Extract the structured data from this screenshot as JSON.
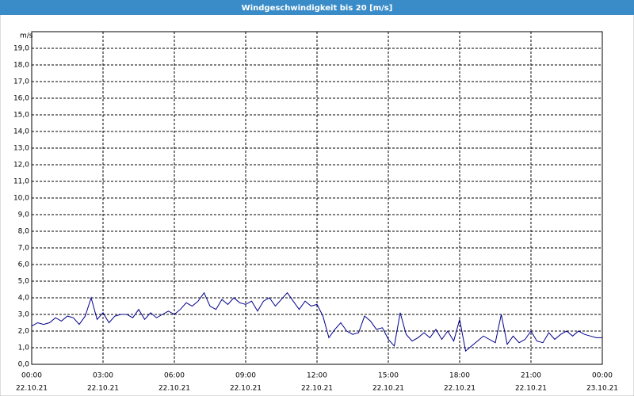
{
  "chart_data": {
    "type": "line",
    "title": "Windgeschwindigkeit bis 20 [m/s]",
    "y_label": "m/s",
    "x": [
      0,
      0.25,
      0.5,
      0.75,
      1,
      1.25,
      1.5,
      1.75,
      2,
      2.25,
      2.5,
      2.75,
      3,
      3.25,
      3.5,
      3.75,
      4,
      4.25,
      4.5,
      4.75,
      5,
      5.25,
      5.5,
      5.75,
      6,
      6.25,
      6.5,
      6.75,
      7,
      7.25,
      7.5,
      7.75,
      8,
      8.25,
      8.5,
      8.75,
      9,
      9.25,
      9.5,
      9.75,
      10,
      10.25,
      10.5,
      10.75,
      11,
      11.25,
      11.5,
      11.75,
      12,
      12.25,
      12.5,
      12.75,
      13,
      13.25,
      13.5,
      13.75,
      14,
      14.25,
      14.5,
      14.75,
      15,
      15.25,
      15.5,
      15.75,
      16,
      16.25,
      16.5,
      16.75,
      17,
      17.25,
      17.5,
      17.75,
      18,
      18.25,
      18.5,
      18.75,
      19,
      19.25,
      19.5,
      19.75,
      20,
      20.25,
      20.5,
      20.75,
      21,
      21.25,
      21.5,
      21.75,
      22,
      22.25,
      22.5,
      22.75,
      23,
      23.25,
      23.5,
      23.75,
      24
    ],
    "series": [
      {
        "name": "Windgeschwindigkeit",
        "color": "#00008b",
        "values": [
          2.3,
          2.5,
          2.4,
          2.5,
          2.8,
          2.6,
          2.9,
          2.8,
          2.4,
          2.9,
          4.0,
          2.7,
          3.1,
          2.5,
          2.9,
          3.0,
          3.0,
          2.8,
          3.3,
          2.7,
          3.1,
          2.8,
          3.0,
          3.2,
          3.0,
          3.3,
          3.7,
          3.5,
          3.8,
          4.3,
          3.5,
          3.3,
          3.9,
          3.6,
          4.0,
          3.7,
          3.6,
          3.8,
          3.2,
          3.8,
          4.0,
          3.5,
          3.9,
          4.3,
          3.8,
          3.3,
          3.8,
          3.5,
          3.6,
          2.9,
          1.6,
          2.1,
          2.5,
          2.0,
          1.8,
          1.9,
          2.9,
          2.6,
          2.1,
          2.2,
          1.5,
          1.1,
          3.1,
          1.8,
          1.4,
          1.6,
          1.9,
          1.6,
          2.1,
          1.5,
          2.0,
          1.4,
          2.7,
          0.8,
          1.1,
          1.4,
          1.7,
          1.5,
          1.3,
          3.0,
          1.2,
          1.7,
          1.3,
          1.5,
          2.0,
          1.4,
          1.3,
          1.9,
          1.5,
          1.8,
          2.0,
          1.7,
          2.0,
          1.8,
          1.7,
          1.6,
          1.6
        ]
      }
    ],
    "xlim": [
      0,
      24
    ],
    "xticks": [
      {
        "value": 0,
        "label": "00:00"
      },
      {
        "value": 3,
        "label": "03:00"
      },
      {
        "value": 6,
        "label": "06:00"
      },
      {
        "value": 9,
        "label": "09:00"
      },
      {
        "value": 12,
        "label": "12:00"
      },
      {
        "value": 15,
        "label": "15:00"
      },
      {
        "value": 18,
        "label": "18:00"
      },
      {
        "value": 21,
        "label": "21:00"
      },
      {
        "value": 24,
        "label": "00:00"
      }
    ],
    "xtick_dates": [
      "22.10.21",
      "22.10.21",
      "22.10.21",
      "22.10.21",
      "22.10.21",
      "22.10.21",
      "22.10.21",
      "22.10.21",
      "23.10.21"
    ],
    "ylim": [
      0,
      20
    ],
    "yticks": [
      {
        "value": 0,
        "label": "0,0"
      },
      {
        "value": 1,
        "label": "1,0"
      },
      {
        "value": 2,
        "label": "2,0"
      },
      {
        "value": 3,
        "label": "3,0"
      },
      {
        "value": 4,
        "label": "4,0"
      },
      {
        "value": 5,
        "label": "5,0"
      },
      {
        "value": 6,
        "label": "6,0"
      },
      {
        "value": 7,
        "label": "7,0"
      },
      {
        "value": 8,
        "label": "8,0"
      },
      {
        "value": 9,
        "label": "9,0"
      },
      {
        "value": 10,
        "label": "10,0"
      },
      {
        "value": 11,
        "label": "11,0"
      },
      {
        "value": 12,
        "label": "12,0"
      },
      {
        "value": 13,
        "label": "13,0"
      },
      {
        "value": 14,
        "label": "14,0"
      },
      {
        "value": 15,
        "label": "15,0"
      },
      {
        "value": 16,
        "label": "16,0"
      },
      {
        "value": 17,
        "label": "17,0"
      },
      {
        "value": 18,
        "label": "18,0"
      },
      {
        "value": 19,
        "label": "19,0"
      }
    ],
    "grid": true
  }
}
